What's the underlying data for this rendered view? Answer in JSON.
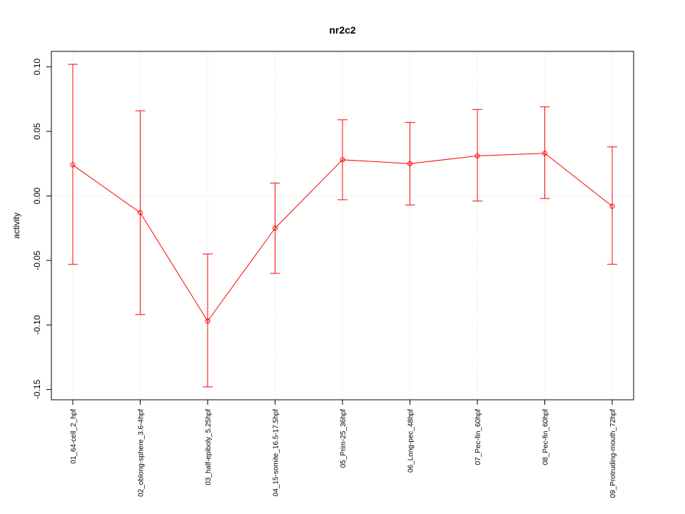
{
  "chart_data": {
    "type": "line",
    "title": "nr2c2",
    "xlabel": "",
    "ylabel": "activity",
    "categories": [
      "01_64-cell_2_hpf",
      "02_oblong-sphere_3.6-4hpf",
      "03_half-epiboly_5.25hpf",
      "04_15-somite_16.5-17.5hpf",
      "05_Prim-25_36hpf",
      "06_Long-pec_48hpf",
      "07_Pec-fin_60hpf",
      "08_Pec-fin_60hpf",
      "09_Protruding-mouth_72hpf"
    ],
    "series": [
      {
        "values": [
          0.024,
          -0.013,
          -0.097,
          -0.025,
          0.028,
          0.025,
          0.031,
          0.033,
          -0.008
        ],
        "upper": [
          0.102,
          0.066,
          -0.045,
          0.01,
          0.059,
          0.057,
          0.067,
          0.069,
          0.038
        ],
        "lower": [
          -0.053,
          -0.092,
          -0.148,
          -0.06,
          -0.003,
          -0.007,
          -0.004,
          -0.002,
          -0.053
        ]
      }
    ],
    "yticks": [
      -0.15,
      -0.1,
      -0.05,
      0.0,
      0.05,
      0.1
    ],
    "ytick_labels": [
      "-0.15",
      "-0.10",
      "-0.05",
      "0.00",
      "0.05",
      "0.10"
    ],
    "ylim": [
      -0.158,
      0.112
    ],
    "grid": true,
    "colors": {
      "series": "#ff0000",
      "grid": "#d3d3d3",
      "axis": "#000000"
    }
  }
}
